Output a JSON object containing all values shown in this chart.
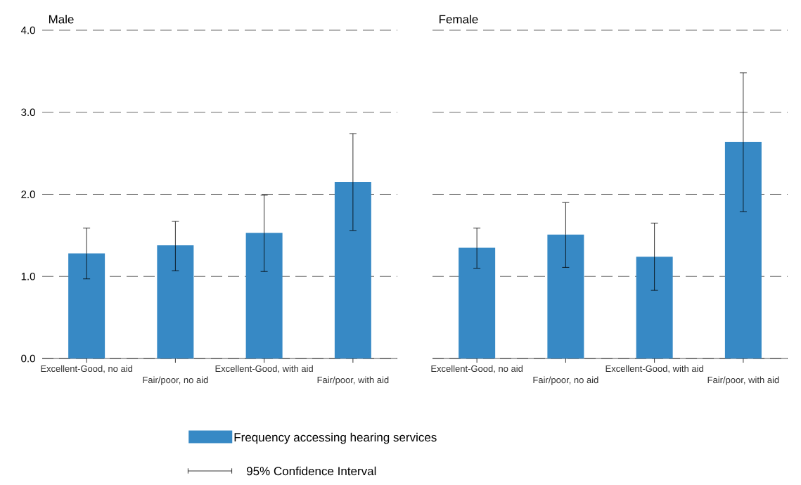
{
  "chart_data": [
    {
      "type": "bar",
      "title": "Male",
      "categories": [
        "Excellent-Good, no aid",
        "Fair/poor, no aid",
        "Excellent-Good, with aid",
        "Fair/poor, with aid"
      ],
      "series": [
        {
          "name": "Frequency accessing hearing services",
          "color": "#3789c5",
          "values": [
            1.28,
            1.38,
            1.53,
            2.15
          ],
          "errors": [
            [
              0.97,
              1.59
            ],
            [
              1.07,
              1.67
            ],
            [
              1.06,
              1.99
            ],
            [
              1.56,
              2.74
            ]
          ]
        }
      ],
      "ylim": [
        0,
        4
      ],
      "yticks": [
        {
          "value": 0,
          "label": "0.0"
        },
        {
          "value": 1,
          "label": "1.0"
        },
        {
          "value": 2,
          "label": "2.0"
        },
        {
          "value": 3,
          "label": "3.0"
        },
        {
          "value": 4,
          "label": "4.0"
        }
      ],
      "grid": "y",
      "legend": "bottom",
      "annotations": [
        "95% Confidence Interval"
      ]
    },
    {
      "type": "bar",
      "title": "Female",
      "categories": [
        "Excellent-Good, no aid",
        "Fair/poor, no aid",
        "Excellent-Good, with aid",
        "Fair/poor, with aid"
      ],
      "series": [
        {
          "color": "#3789c5",
          "values": [
            1.35,
            1.51,
            1.24,
            2.64
          ],
          "errors": [
            [
              1.1,
              1.59
            ],
            [
              1.11,
              1.9
            ],
            [
              0.83,
              1.65
            ],
            [
              1.79,
              3.48
            ]
          ]
        }
      ],
      "ylim": [
        0,
        4
      ],
      "yticks": [
        {
          "value": 0,
          "label": null
        },
        {
          "value": 1,
          "label": null
        },
        {
          "value": 2,
          "label": null
        },
        {
          "value": 3,
          "label": null
        },
        {
          "value": 4,
          "label": null
        }
      ],
      "grid": "y",
      "tick_labels": "x"
    }
  ]
}
